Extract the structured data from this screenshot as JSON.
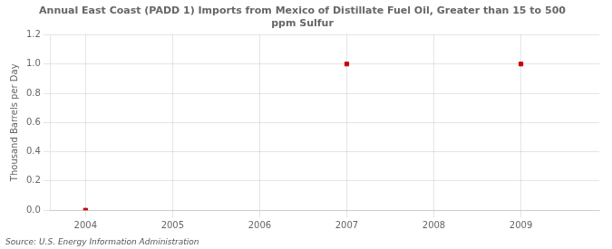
{
  "chart_data": {
    "type": "scatter",
    "title": "Annual East Coast (PADD 1) Imports from Mexico of Distillate Fuel Oil, Greater than 15 to 500\nppm Sulfur",
    "ylabel": "Thousand Barrels per Day",
    "source": "Source: U.S. Energy Information Administration",
    "x": [
      2007,
      2009,
      2004
    ],
    "values": [
      1.0,
      1.0,
      0.0
    ],
    "color": "#cc0000",
    "marker": "square",
    "xlim": [
      2003.6,
      2009.9
    ],
    "xticks": [
      2004,
      2005,
      2006,
      2007,
      2008,
      2009
    ],
    "ylim": [
      0.0,
      1.2
    ],
    "yticks": [
      {
        "value": 0.0,
        "label": "0.0"
      },
      {
        "value": 0.2,
        "label": "0.2"
      },
      {
        "value": 0.4,
        "label": "0.4"
      },
      {
        "value": 0.6,
        "label": "0.6"
      },
      {
        "value": 0.8,
        "label": "0.8"
      },
      {
        "value": 1.0,
        "label": "1.0"
      },
      {
        "value": 1.2,
        "label": "1.2"
      }
    ],
    "grid": true
  }
}
